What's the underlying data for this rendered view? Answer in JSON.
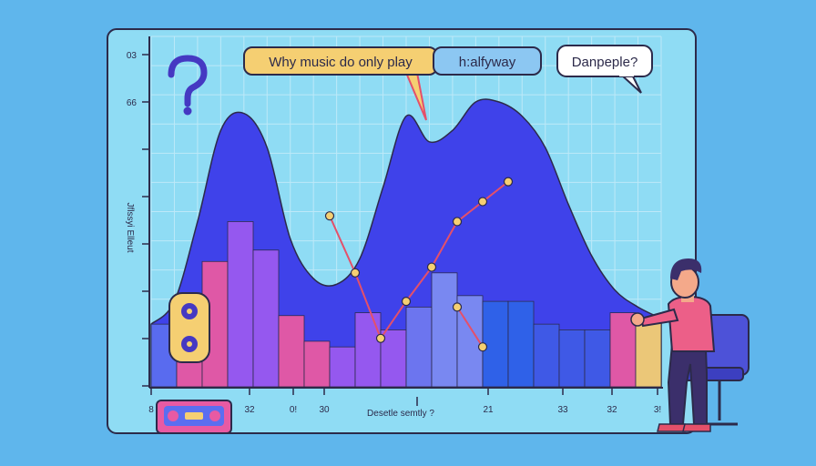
{
  "chart_data": {
    "type": "bar",
    "x_tick_labels": [
      "8",
      "32",
      "0!",
      "30",
      "21",
      "33",
      "32",
      "3!"
    ],
    "y_tick_labels": [
      "03",
      "66"
    ],
    "xlabel": "Desetle semtly ?",
    "ylabel": "Jflssyi Elleut",
    "curve": {
      "x": [
        0,
        1,
        2,
        3,
        4,
        5,
        6,
        7,
        8,
        9,
        10,
        11,
        12,
        13,
        14,
        15,
        16,
        17,
        18,
        19,
        20,
        21,
        22
      ],
      "y": [
        22,
        30,
        58,
        90,
        96,
        84,
        52,
        38,
        36,
        45,
        70,
        95,
        86,
        90,
        100,
        100,
        95,
        84,
        64,
        46,
        34,
        28,
        24
      ]
    },
    "bars": [
      {
        "x": 0,
        "value": 22,
        "color": "#5b6ef0"
      },
      {
        "x": 1,
        "value": 30,
        "color": "#e85aa3"
      },
      {
        "x": 2,
        "value": 44,
        "color": "#e85aa3"
      },
      {
        "x": 3,
        "value": 58,
        "color": "#9a5af0"
      },
      {
        "x": 4,
        "value": 48,
        "color": "#9a5af0"
      },
      {
        "x": 5,
        "value": 25,
        "color": "#e85aa3"
      },
      {
        "x": 6,
        "value": 16,
        "color": "#e85aa3"
      },
      {
        "x": 7,
        "value": 14,
        "color": "#9a5af0"
      },
      {
        "x": 8,
        "value": 26,
        "color": "#9a5af0"
      },
      {
        "x": 9,
        "value": 20,
        "color": "#9a5af0"
      },
      {
        "x": 10,
        "value": 28,
        "color": "#6f78f0"
      },
      {
        "x": 11,
        "value": 40,
        "color": "#7d8cf2"
      },
      {
        "x": 12,
        "value": 32,
        "color": "#7d8cf2"
      },
      {
        "x": 13,
        "value": 30,
        "color": "#2f63e8"
      },
      {
        "x": 14,
        "value": 30,
        "color": "#2f63e8"
      },
      {
        "x": 15,
        "value": 22,
        "color": "#3f5be6"
      },
      {
        "x": 16,
        "value": 20,
        "color": "#3f5be6"
      },
      {
        "x": 17,
        "value": 20,
        "color": "#3f5be6"
      },
      {
        "x": 18,
        "value": 26,
        "color": "#e85aa3"
      },
      {
        "x": 19,
        "value": 24,
        "color": "#f5cf72"
      }
    ],
    "lines": [
      {
        "points": [
          [
            7,
            60
          ],
          [
            8,
            40
          ],
          [
            9,
            17
          ],
          [
            10,
            30
          ],
          [
            11,
            42
          ],
          [
            12,
            58
          ],
          [
            13,
            65
          ],
          [
            14,
            72
          ]
        ],
        "color": "#e4506a"
      },
      {
        "points": [
          [
            12,
            28
          ],
          [
            13,
            14
          ]
        ],
        "color": "#e4506a"
      }
    ],
    "colors": {
      "background": "#5fb6ec",
      "panel": "#8fdcf4",
      "gridline": "#bde9f8",
      "curve": "#3f42ea"
    }
  },
  "annotations": {
    "bubble_question": "Why music do only play",
    "bubble_halfway": "h:alfyway",
    "bubble_danpeple": "Danpeple?"
  },
  "icons": [
    "question-mark-icon",
    "speaker-icon",
    "cassette-icon",
    "person-illustration",
    "chair-illustration"
  ]
}
